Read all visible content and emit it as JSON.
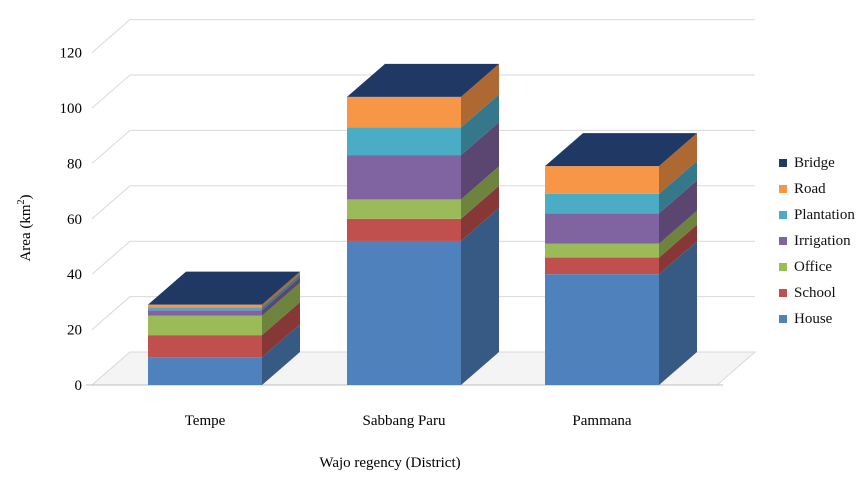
{
  "chart_data": {
    "type": "bar",
    "stacked": true,
    "three_d": true,
    "categories": [
      "Tempe",
      "Sabbang  Paru",
      "Pammana"
    ],
    "series": [
      {
        "name": "House",
        "color": "#4F81BD",
        "values": [
          10,
          52,
          40
        ]
      },
      {
        "name": "School",
        "color": "#C0504D",
        "values": [
          8,
          8,
          6
        ]
      },
      {
        "name": "Office",
        "color": "#9BBB59",
        "values": [
          7,
          7,
          5
        ]
      },
      {
        "name": "Irrigation",
        "color": "#8064A2",
        "values": [
          2,
          16,
          11
        ]
      },
      {
        "name": "Plantation",
        "color": "#4BACC6",
        "values": [
          1,
          10,
          7
        ]
      },
      {
        "name": "Road",
        "color": "#F79646",
        "values": [
          1,
          11,
          10
        ]
      },
      {
        "name": "Bridge",
        "color": "#1F3864",
        "values": [
          0,
          0,
          0
        ]
      }
    ],
    "xlabel": "Wajo regency (District)",
    "ylabel": {
      "text": "Area (km",
      "superscript": "2",
      "suffix": ")"
    },
    "yticks": [
      0,
      20,
      40,
      60,
      80,
      100,
      120
    ],
    "ylim": [
      0,
      120
    ],
    "grid": true,
    "legend_position": "right"
  }
}
